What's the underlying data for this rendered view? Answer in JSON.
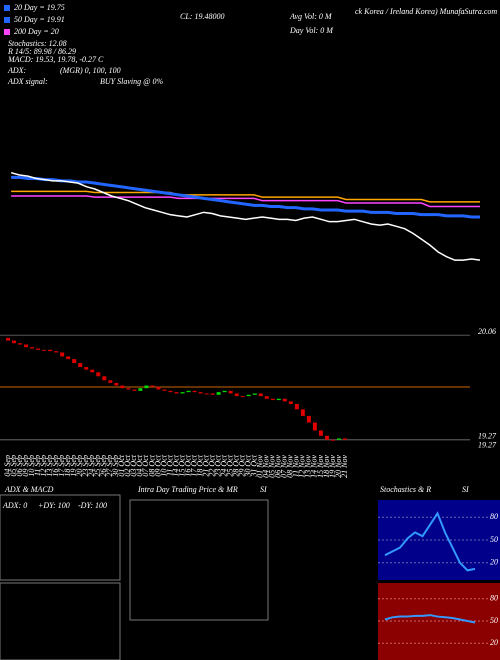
{
  "chart_data": {
    "type": "candlestick",
    "title": "CL: 19.48000",
    "site": "ck Korea / Ireland Korea) MunafaSutra.com",
    "legend_texts": [
      "20 Day = 19.75",
      "50 Day = 19.91",
      "200 Day = 20",
      "Stochastics: 12.08",
      "R 14/5: 89.98 / 86.29",
      "MACD: 19.53, 19.78, -0.27 C",
      "ADX:",
      "(MGR) 0, 100, 100",
      "ADX signal:",
      "BUY Slaving @ 0%"
    ],
    "volume_texts": [
      "Avg Vol: 0  M",
      "Day Vol: 0  M"
    ],
    "categories": [
      "04 Sep",
      "05 Sep",
      "06 Sep",
      "09 Sep",
      "10 Sep",
      "11 Sep",
      "12 Sep",
      "13 Sep",
      "16 Sep",
      "17 Sep",
      "18 Sep",
      "19 Sep",
      "20 Sep",
      "23 Sep",
      "24 Sep",
      "25 Sep",
      "26 Sep",
      "27 Sep",
      "30 Sep",
      "01 Oct",
      "02 Oct",
      "03 Oct",
      "04 Oct",
      "07 Oct",
      "08 Oct",
      "09 Oct",
      "10 Oct",
      "11 Oct",
      "14 Oct",
      "15 Oct",
      "16 Oct",
      "17 Oct",
      "18 Oct",
      "21 Oct",
      "22 Oct",
      "23 Oct",
      "24 Oct",
      "25 Oct",
      "28 Oct",
      "29 Oct",
      "30 Oct",
      "31 Oct",
      "01 Nov",
      "04 Nov",
      "05 Nov",
      "06 Nov",
      "07 Nov",
      "08 Nov",
      "11 Nov",
      "12 Nov",
      "13 Nov",
      "14 Nov",
      "15 Nov",
      "18 Nov",
      "19 Nov",
      "20 Nov",
      "21 Nov"
    ],
    "open": [
      20.04,
      20.02,
      20.0,
      19.99,
      19.97,
      19.96,
      19.95,
      19.95,
      19.94,
      19.93,
      19.9,
      19.88,
      19.85,
      19.82,
      19.8,
      19.78,
      19.75,
      19.72,
      19.7,
      19.68,
      19.66,
      19.65,
      19.64,
      19.66,
      19.68,
      19.67,
      19.65,
      19.64,
      19.63,
      19.62,
      19.63,
      19.64,
      19.63,
      19.62,
      19.62,
      19.61,
      19.63,
      19.64,
      19.62,
      19.6,
      19.6,
      19.61,
      19.62,
      19.6,
      19.58,
      19.57,
      19.58,
      19.56,
      19.54,
      19.5,
      19.45,
      19.4,
      19.34,
      19.3,
      19.27,
      19.27,
      19.28
    ],
    "close": [
      20.02,
      20.0,
      19.99,
      19.97,
      19.96,
      19.95,
      19.95,
      19.94,
      19.93,
      19.9,
      19.88,
      19.85,
      19.82,
      19.8,
      19.78,
      19.75,
      19.72,
      19.7,
      19.68,
      19.66,
      19.65,
      19.64,
      19.66,
      19.68,
      19.67,
      19.65,
      19.64,
      19.63,
      19.62,
      19.63,
      19.64,
      19.63,
      19.62,
      19.62,
      19.61,
      19.63,
      19.64,
      19.62,
      19.6,
      19.6,
      19.61,
      19.62,
      19.6,
      19.58,
      19.57,
      19.58,
      19.56,
      19.54,
      19.5,
      19.45,
      19.4,
      19.34,
      19.3,
      19.27,
      19.27,
      19.28,
      19.27
    ],
    "up_color": "#00dd00",
    "down_color": "#dd0000",
    "ylim": [
      19.2,
      20.1
    ],
    "price_labels": [
      20.06,
      19.27,
      19.27
    ],
    "ma_ylim": [
      19.1,
      20.3
    ],
    "ma_series": [
      {
        "color": "#ffa500",
        "values": [
          19.86,
          19.86,
          19.86,
          19.86,
          19.86,
          19.86,
          19.86,
          19.86,
          19.86,
          19.86,
          19.85,
          19.85,
          19.85,
          19.85,
          19.85,
          19.85,
          19.85,
          19.85,
          19.85,
          19.85,
          19.83,
          19.83,
          19.83,
          19.83,
          19.83,
          19.83,
          19.83,
          19.83,
          19.83,
          19.83,
          19.81,
          19.81,
          19.81,
          19.81,
          19.81,
          19.81,
          19.81,
          19.81,
          19.81,
          19.81,
          19.79,
          19.79,
          19.79,
          19.79,
          19.79,
          19.79,
          19.79,
          19.79,
          19.79,
          19.79,
          19.77,
          19.77,
          19.77,
          19.77,
          19.77,
          19.77,
          19.77
        ]
      },
      {
        "color": "#ff44ff",
        "values": [
          19.82,
          19.82,
          19.82,
          19.82,
          19.82,
          19.82,
          19.82,
          19.82,
          19.82,
          19.82,
          19.81,
          19.81,
          19.81,
          19.81,
          19.81,
          19.81,
          19.81,
          19.81,
          19.81,
          19.81,
          19.8,
          19.8,
          19.8,
          19.8,
          19.8,
          19.8,
          19.8,
          19.8,
          19.8,
          19.8,
          19.78,
          19.78,
          19.78,
          19.78,
          19.78,
          19.78,
          19.78,
          19.78,
          19.78,
          19.78,
          19.76,
          19.76,
          19.76,
          19.76,
          19.76,
          19.76,
          19.76,
          19.76,
          19.76,
          19.76,
          19.73,
          19.73,
          19.73,
          19.73,
          19.73,
          19.73,
          19.73
        ]
      },
      {
        "color": "#2266ff",
        "values": [
          19.98,
          19.98,
          19.97,
          19.97,
          19.96,
          19.96,
          19.95,
          19.95,
          19.94,
          19.94,
          19.93,
          19.92,
          19.91,
          19.9,
          19.89,
          19.88,
          19.87,
          19.86,
          19.85,
          19.84,
          19.83,
          19.82,
          19.81,
          19.8,
          19.79,
          19.78,
          19.77,
          19.76,
          19.75,
          19.74,
          19.74,
          19.73,
          19.73,
          19.72,
          19.72,
          19.71,
          19.71,
          19.7,
          19.7,
          19.7,
          19.69,
          19.69,
          19.69,
          19.68,
          19.68,
          19.68,
          19.67,
          19.67,
          19.67,
          19.66,
          19.66,
          19.66,
          19.65,
          19.65,
          19.65,
          19.64,
          19.64
        ]
      }
    ],
    "adx_title": "ADX & MACD",
    "adx_texts": [
      "ADX: 0",
      "+DY: 100",
      "-DY: 100"
    ],
    "intraday_title": "Intra Day Trading Price & MR",
    "intraday_si": "SI",
    "stoch_title": "Stochastics & R",
    "stoch_si": "SI",
    "stoch_ticks": [
      80,
      50,
      20
    ],
    "rsi_ticks": [
      80,
      50,
      20
    ],
    "stoch_values": [
      30,
      35,
      40,
      52,
      60,
      55,
      70,
      85,
      60,
      40,
      20,
      10,
      12
    ],
    "rsi_values": [
      52,
      55,
      56,
      56,
      57,
      57,
      58,
      56,
      55,
      54,
      52,
      50,
      48
    ]
  }
}
